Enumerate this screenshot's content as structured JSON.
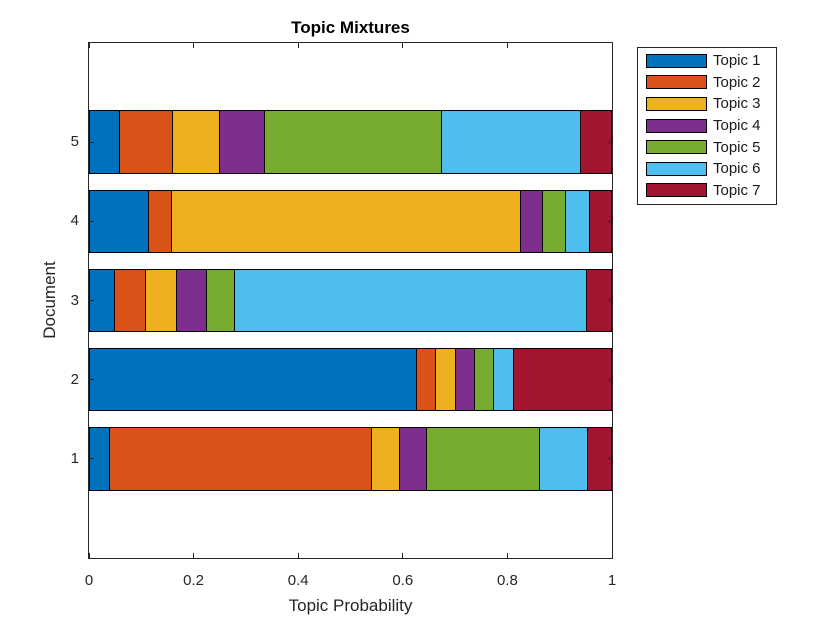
{
  "chart_data": {
    "type": "bar",
    "orientation": "horizontal",
    "stacked": true,
    "title": "Topic Mixtures",
    "xlabel": "Topic Probability",
    "ylabel": "Document",
    "categories": [
      1,
      2,
      3,
      4,
      5
    ],
    "series": [
      {
        "name": "Topic 1",
        "color": "#0072BD",
        "values": [
          0.04,
          0.627,
          0.05,
          0.115,
          0.06
        ]
      },
      {
        "name": "Topic 2",
        "color": "#D95319",
        "values": [
          0.502,
          0.037,
          0.059,
          0.043,
          0.1
        ]
      },
      {
        "name": "Topic 3",
        "color": "#EDB120",
        "values": [
          0.053,
          0.037,
          0.06,
          0.668,
          0.091
        ]
      },
      {
        "name": "Topic 4",
        "color": "#7E2F8E",
        "values": [
          0.051,
          0.037,
          0.056,
          0.043,
          0.086
        ]
      },
      {
        "name": "Topic 5",
        "color": "#77AC30",
        "values": [
          0.216,
          0.037,
          0.054,
          0.043,
          0.338
        ]
      },
      {
        "name": "Topic 6",
        "color": "#4DBEEE",
        "values": [
          0.093,
          0.038,
          0.674,
          0.045,
          0.266
        ]
      },
      {
        "name": "Topic 7",
        "color": "#A2142F",
        "values": [
          0.045,
          0.187,
          0.047,
          0.043,
          0.059
        ]
      }
    ],
    "xlim": [
      0,
      1
    ],
    "ylim": [
      -0.25,
      6.25
    ],
    "x_ticks": [
      "0",
      "0.2",
      "0.4",
      "0.6",
      "0.8",
      "1"
    ],
    "x_tick_values": [
      0,
      0.2,
      0.4,
      0.6,
      0.8,
      1
    ],
    "y_ticks": [
      "1",
      "2",
      "3",
      "4",
      "5"
    ],
    "bar_width": 0.8,
    "grid": false,
    "legend_position": "outside-upper-right"
  },
  "style": {
    "axis_color": "#262626",
    "text_color": "#262626",
    "title_color": "#000000",
    "bar_edge_color": "#000000",
    "background": "#FFFFFF"
  }
}
